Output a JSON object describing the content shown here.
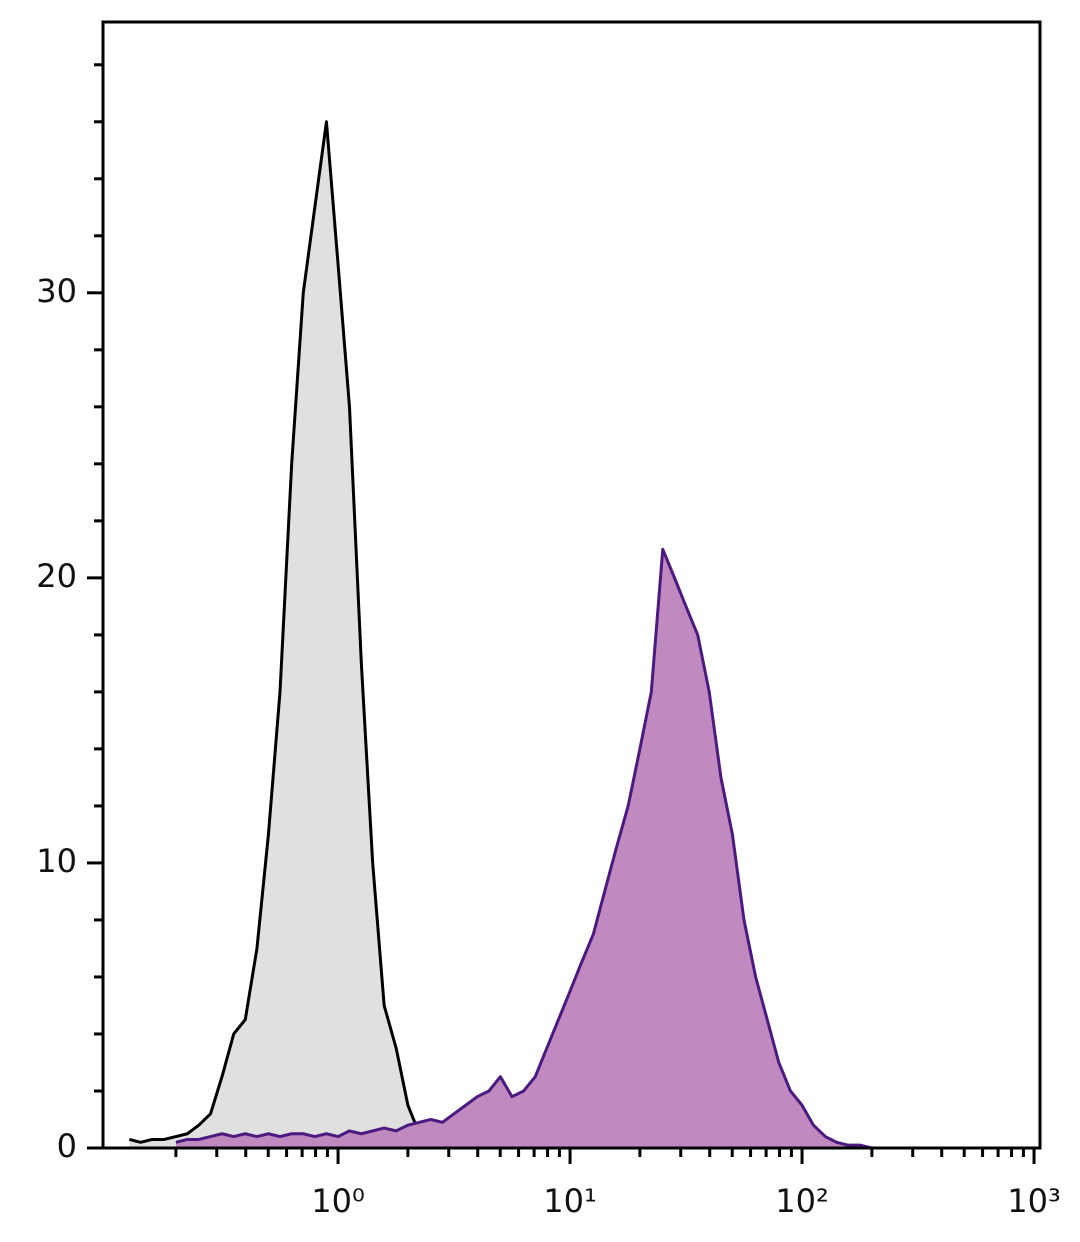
{
  "chart_data": {
    "type": "area",
    "xscale": "log",
    "xlim": [
      0.097,
      1061
    ],
    "ylim": [
      0,
      39.5
    ],
    "xticks": [
      {
        "value": 1,
        "label": "10⁰"
      },
      {
        "value": 10,
        "label": "10¹"
      },
      {
        "value": 100,
        "label": "10²"
      },
      {
        "value": 1000,
        "label": "10³"
      }
    ],
    "xminorticks": [
      0.2,
      0.3,
      0.4,
      0.5,
      0.6,
      0.7,
      0.8,
      0.9,
      2,
      3,
      4,
      5,
      6,
      7,
      8,
      9,
      20,
      30,
      40,
      50,
      60,
      70,
      80,
      90,
      200,
      300,
      400,
      500,
      600,
      700,
      800,
      900
    ],
    "yticks": [
      0,
      10,
      20,
      30
    ],
    "yminorticks": [
      2,
      4,
      6,
      8,
      12,
      14,
      16,
      18,
      22,
      24,
      26,
      28,
      32,
      34,
      36,
      38
    ],
    "x": [
      0.126,
      0.141,
      0.158,
      0.178,
      0.2,
      0.224,
      0.251,
      0.282,
      0.316,
      0.355,
      0.398,
      0.447,
      0.501,
      0.562,
      0.631,
      0.708,
      0.794,
      0.891,
      1,
      1.12,
      1.26,
      1.41,
      1.58,
      1.78,
      2,
      2.24,
      2.51,
      2.82,
      3.16,
      3.55,
      3.98,
      4.47,
      5.01,
      5.62,
      6.31,
      7.08,
      7.94,
      8.91,
      10,
      11.2,
      12.6,
      14.1,
      15.8,
      17.8,
      20,
      22.4,
      25.1,
      28.2,
      31.6,
      35.5,
      39.8,
      44.7,
      50.1,
      56.2,
      63.1,
      70.8,
      79.4,
      89.1,
      100,
      112,
      126,
      141,
      158,
      178,
      200
    ],
    "series": [
      {
        "color": "#000000",
        "fill": "#e0e0e0",
        "values": [
          0.3,
          0.2,
          0.3,
          0.3,
          0.4,
          0.5,
          0.8,
          1.2,
          2.5,
          4,
          4.5,
          7,
          11,
          16,
          24,
          30,
          33,
          36,
          31,
          26,
          17,
          10,
          5,
          3.5,
          1.5,
          0.5,
          0.2,
          null,
          null,
          null,
          null,
          null,
          null,
          null,
          null,
          null,
          null,
          null,
          null,
          null,
          null,
          null,
          null,
          null,
          null,
          null,
          null,
          null,
          null,
          null,
          null,
          null,
          null,
          null,
          null,
          null,
          null,
          null,
          null,
          null,
          null,
          null,
          null,
          null,
          null
        ]
      },
      {
        "color": "#4b1a80",
        "fill": "#c08ac0",
        "values": [
          null,
          null,
          null,
          null,
          0.2,
          0.3,
          0.3,
          0.4,
          0.5,
          0.4,
          0.5,
          0.4,
          0.5,
          0.4,
          0.5,
          0.5,
          0.4,
          0.5,
          0.4,
          0.6,
          0.5,
          0.6,
          0.7,
          0.6,
          0.8,
          0.9,
          1,
          0.9,
          1.2,
          1.5,
          1.8,
          2,
          2.5,
          1.8,
          2,
          2.5,
          3.5,
          4.5,
          5.5,
          6.5,
          7.5,
          9,
          10.5,
          12,
          14,
          16,
          21,
          20,
          19,
          18,
          16,
          13,
          11,
          8,
          6,
          4.5,
          3,
          2,
          1.5,
          0.8,
          0.4,
          0.2,
          0.1,
          0.1,
          0
        ]
      }
    ]
  }
}
